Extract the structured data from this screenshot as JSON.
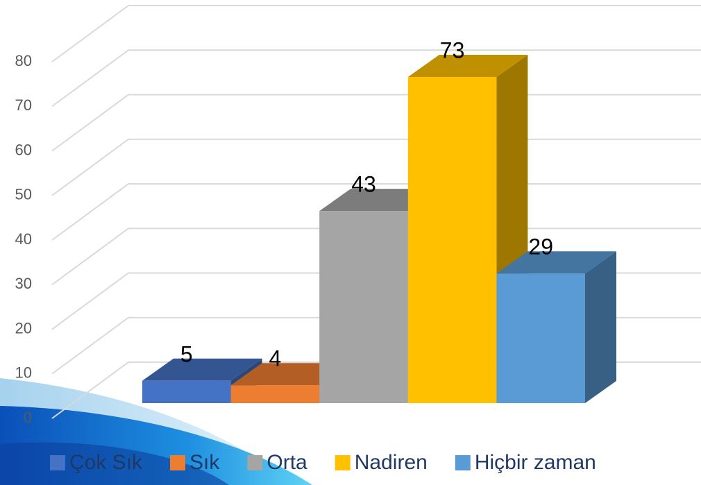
{
  "chart_data": {
    "type": "bar",
    "categories": [
      null
    ],
    "series": [
      {
        "name": "Çok Sık",
        "color": "#4472c4",
        "values": [
          5
        ]
      },
      {
        "name": "Sık",
        "color": "#ed7d31",
        "values": [
          4
        ]
      },
      {
        "name": "Orta",
        "color": "#a5a5a5",
        "values": [
          43
        ]
      },
      {
        "name": "Nadiren",
        "color": "#ffc000",
        "values": [
          73
        ]
      },
      {
        "name": "Hiçbir zaman",
        "color": "#5b9bd5",
        "values": [
          29
        ]
      }
    ],
    "ylim": [
      0,
      80
    ],
    "yticks": [
      0,
      10,
      20,
      30,
      40,
      50,
      60,
      70,
      80
    ],
    "grid": true,
    "legend": "bottom"
  }
}
